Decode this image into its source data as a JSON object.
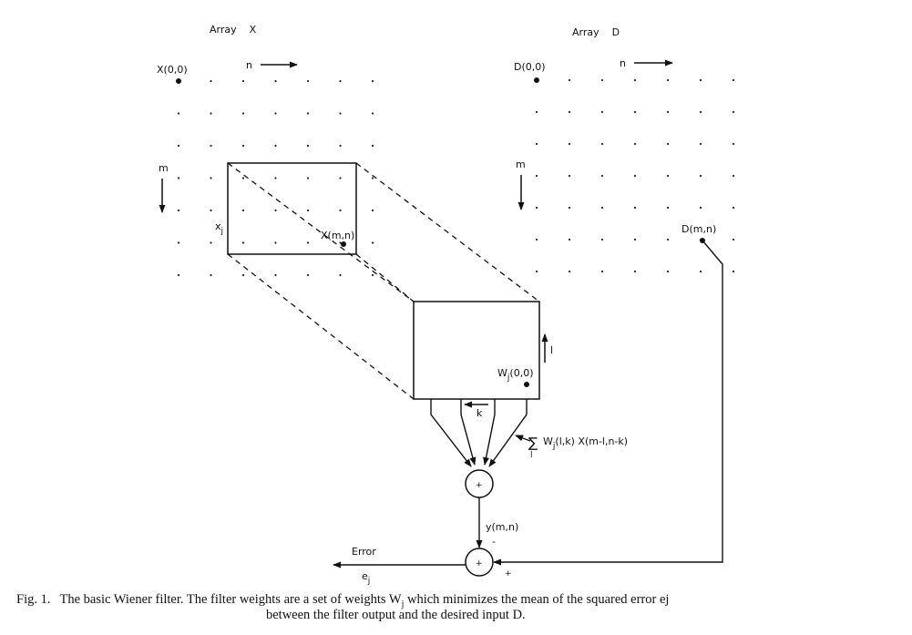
{
  "labels": {
    "array_x_title": "Array    X",
    "array_d_title": "Array    D",
    "x00": "X(0,0)",
    "d00": "D(0,0)",
    "n_left": "n",
    "n_right": "n",
    "m_left": "m",
    "m_right": "m",
    "xj": "x",
    "xj_sub": "j",
    "xmn": "X(m,n)",
    "dmn": "D(m,n)",
    "l_arrow": "l",
    "wj00": "W",
    "wj00_sub": "j",
    "wj00_args": "(0,0)",
    "k_arrow": "k",
    "sum_sym": "∑",
    "sum_sub": "l",
    "sum_term": "W",
    "sum_term_sub": "j",
    "sum_term_args": "(l,k) X(m-l,n-k)",
    "ymn": "y(m,n)",
    "minus": "-",
    "plus": "+",
    "adder1": "+",
    "adder2": "+",
    "error": "Error",
    "ej": "e",
    "ej_sub": "j"
  },
  "caption": {
    "label": "Fig. 1.",
    "line1": "The basic Wiener filter. The filter weights are a set of weights W",
    "line1_sub": "j",
    "line1_rest": " which minimizes the mean of the squared error ej",
    "line2": "between the filter output and the desired input D."
  }
}
